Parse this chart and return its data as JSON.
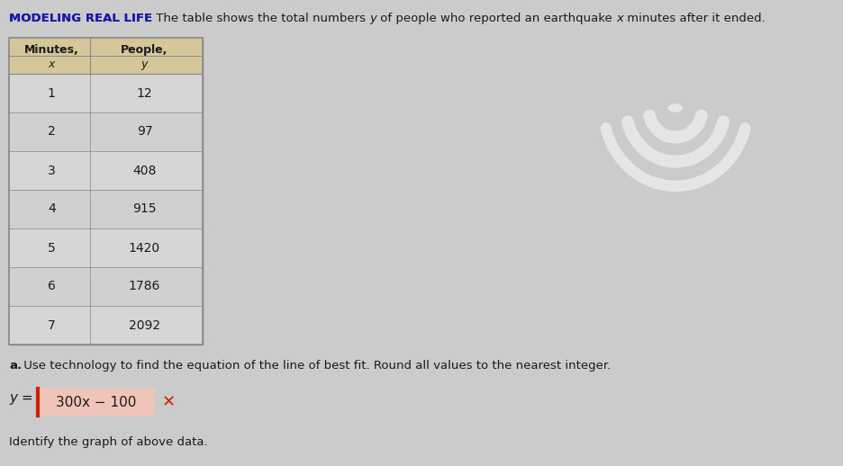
{
  "title_bold": "MODELING REAL LIFE",
  "title_rest": " The table shows the total numbers ",
  "title_italic_y": "y",
  "title_mid": " of people who reported an earthquake ",
  "title_italic_x": "x",
  "title_end": " minutes after it ended.",
  "col_header1": "Minutes,",
  "col_header2": "People,",
  "col_sub1": "x",
  "col_sub2": "y",
  "x_values": [
    1,
    2,
    3,
    4,
    5,
    6,
    7
  ],
  "y_values": [
    12,
    97,
    408,
    915,
    1420,
    1786,
    2092
  ],
  "part_a_label": "a.",
  "part_a_text": " Use technology to find the equation of the line of best fit. Round all values to the nearest integer.",
  "equation_prefix": "y =",
  "equation_value": "300x − 100",
  "equation_wrong_marker": "✕",
  "identify_text": "Identify the graph of above data.",
  "bg_color": "#c8c8c8",
  "body_bg": "#d0d0d0",
  "header_bg": "#d4c89a",
  "text_color": "#1a1a1a",
  "title_bold_color": "#1a1aaa",
  "equation_box_border": "#cc2200",
  "equation_box_fill": "#f0c4b8",
  "table_border_color": "#888888",
  "wifi_color": "#e8e8e8",
  "cursor_color": "#111111"
}
